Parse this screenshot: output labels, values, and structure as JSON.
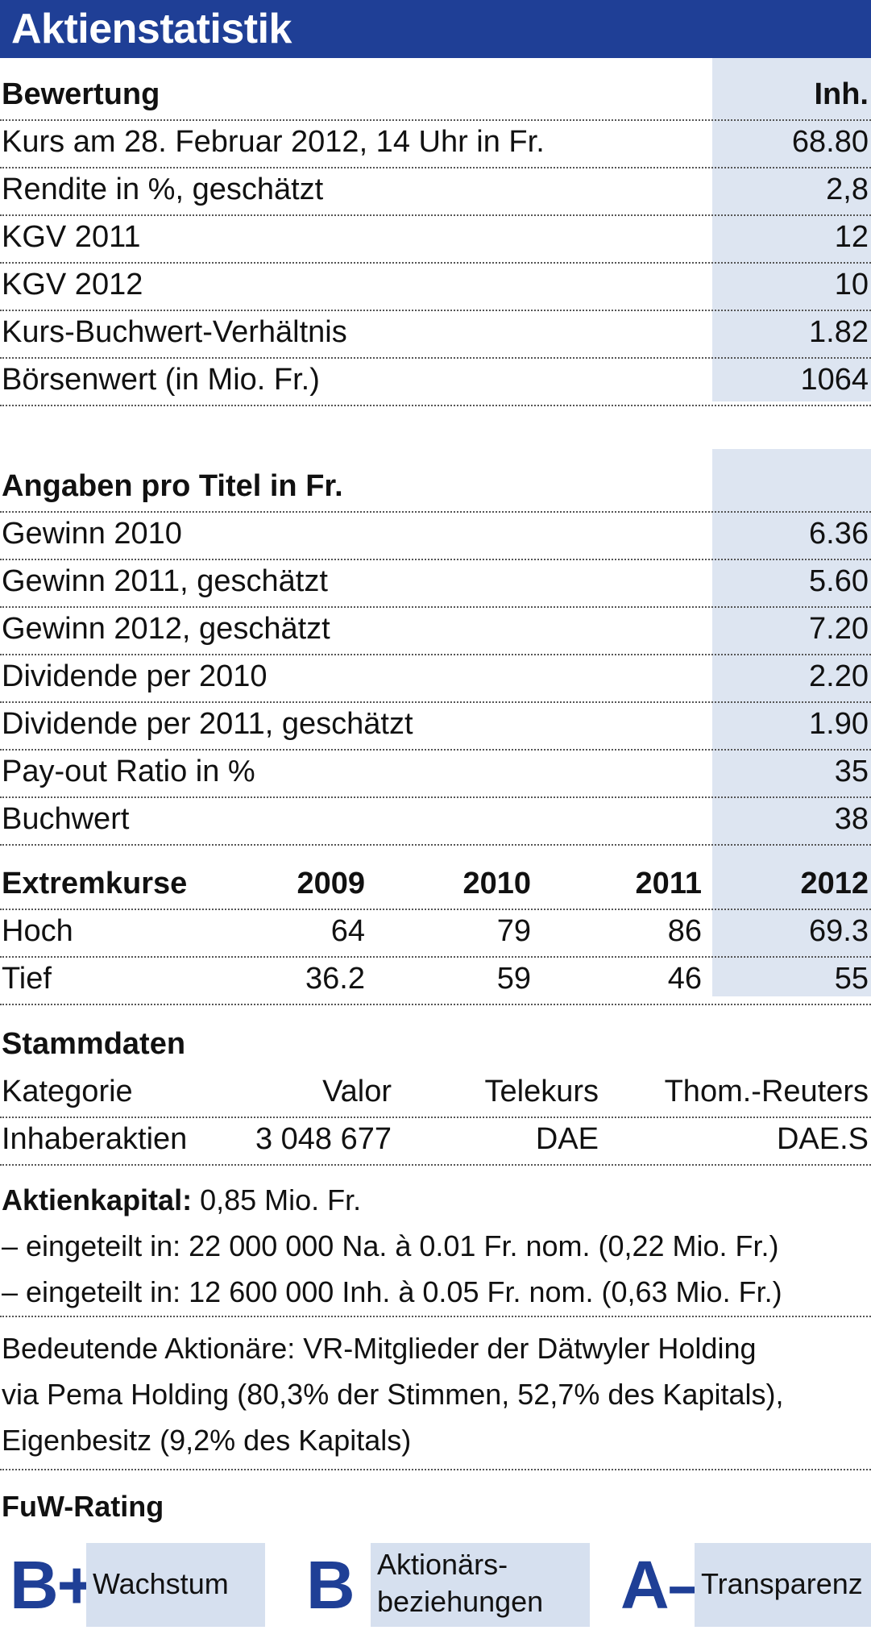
{
  "title": "Aktienstatistik",
  "bewertung": {
    "header": "Bewertung",
    "col": "Inh.",
    "rows": [
      {
        "label": "Kurs am 28. Februar 2012, 14 Uhr in Fr.",
        "value": "68.80"
      },
      {
        "label": "Rendite in %, geschätzt",
        "value": "2,8"
      },
      {
        "label": "KGV 2011",
        "value": "12"
      },
      {
        "label": "KGV 2012",
        "value": "10"
      },
      {
        "label": "Kurs-Buchwert-Verhältnis",
        "value": "1.82"
      },
      {
        "label": "Börsenwert (in Mio. Fr.)",
        "value": "1064"
      }
    ]
  },
  "angaben": {
    "header": "Angaben pro Titel in Fr.",
    "rows": [
      {
        "label": "Gewinn 2010",
        "value": "6.36"
      },
      {
        "label": "Gewinn 2011, geschätzt",
        "value": "5.60"
      },
      {
        "label": "Gewinn 2012, geschätzt",
        "value": "7.20"
      },
      {
        "label": "Dividende per 2010",
        "value": "2.20"
      },
      {
        "label": "Dividende per 2011, geschätzt",
        "value": "1.90"
      },
      {
        "label": "Pay-out Ratio in %",
        "value": "35"
      },
      {
        "label": "Buchwert",
        "value": "38"
      }
    ]
  },
  "extremkurse": {
    "header": "Extremkurse",
    "years": [
      "2009",
      "2010",
      "2011",
      "2012"
    ],
    "rows": [
      {
        "label": "Hoch",
        "values": [
          "64",
          "79",
          "86",
          "69.3"
        ]
      },
      {
        "label": "Tief",
        "values": [
          "36.2",
          "59",
          "46",
          "55"
        ]
      }
    ]
  },
  "stammdaten": {
    "header": "Stammdaten",
    "columns": [
      "Kategorie",
      "Valor",
      "Telekurs",
      "Thom.-Reuters"
    ],
    "row": [
      "Inhaberaktien",
      "3 048 677",
      "DAE",
      "DAE.S"
    ]
  },
  "aktienkapital": {
    "label": "Aktienkapital:",
    "value": "0,85 Mio. Fr.",
    "line1": "– eingeteilt in: 22 000 000 Na. à 0.01 Fr. nom. (0,22 Mio. Fr.)",
    "line2": "– eingeteilt in: 12 600 000 Inh. à 0.05 Fr. nom. (0,63 Mio. Fr.)"
  },
  "aktionaere": {
    "line1": "Bedeutende Aktionäre: VR-Mitglieder der Dätwyler Holding",
    "line2": "via Pema Holding (80,3% der Stimmen, 52,7% des Kapitals),",
    "line3": "Eigenbesitz (9,2% des Kapitals)"
  },
  "rating": {
    "header": "FuW-Rating",
    "items": [
      {
        "grade": "B+",
        "label": "Wachstum"
      },
      {
        "grade": "B",
        "label_line1": "Aktionärs-",
        "label_line2": "beziehungen"
      },
      {
        "grade": "A–",
        "label": "Transparenz"
      }
    ]
  },
  "colors": {
    "brand_blue": "#1f3f96",
    "shade": "#dde5f1",
    "rating_box": "#d6e0ef"
  }
}
